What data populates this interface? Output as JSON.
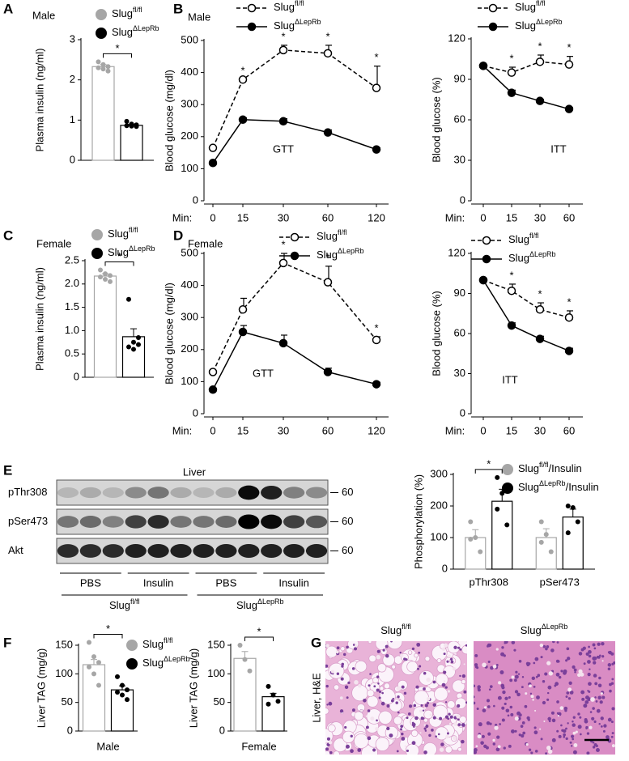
{
  "panel_labels": [
    "A",
    "B",
    "C",
    "D",
    "E",
    "F",
    "G"
  ],
  "chart_data": [
    {
      "type": "bar",
      "title": "Male",
      "ylabel": "Plasma insulin (ng/ml)",
      "ylim": [
        0,
        3
      ],
      "yticks": [
        0,
        1,
        2,
        3
      ],
      "legend": true,
      "significance": [
        "*"
      ],
      "series": [
        {
          "name": "Slug",
          "sup": "fl/fl",
          "color": "#a6a6a6",
          "values": [
            2.33
          ],
          "errors": [
            0.05
          ],
          "points": [
            [
              2.45,
              2.38,
              2.33,
              2.3,
              2.27,
              2.22
            ]
          ]
        },
        {
          "name": "Slug",
          "sup": "ΔLepRb",
          "color": "#000000",
          "values": [
            0.87
          ],
          "errors": [
            0.03
          ],
          "points": [
            [
              0.97,
              0.9,
              0.88,
              0.86,
              0.85,
              0.84
            ]
          ]
        }
      ]
    },
    {
      "type": "line",
      "title": "Male",
      "ylabel": "Blood glucose (mg/dl)",
      "xlabel": "Min:",
      "annotation": "GTT",
      "categories": [
        "0",
        "15",
        "30",
        "60",
        "120"
      ],
      "ylim": [
        0,
        500
      ],
      "yticks": [
        0,
        100,
        200,
        300,
        400,
        500
      ],
      "stars": [
        null,
        "*",
        "*",
        "*",
        "*"
      ],
      "legend": true,
      "series": [
        {
          "name": "Slug",
          "sup": "fl/fl",
          "color": "#000000",
          "dash": true,
          "marker": "open",
          "values": [
            165,
            378,
            470,
            460,
            352
          ],
          "errors": [
            null,
            null,
            15,
            25,
            68
          ]
        },
        {
          "name": "Slug",
          "sup": "ΔLepRb",
          "color": "#000000",
          "dash": false,
          "marker": "filled",
          "values": [
            118,
            253,
            248,
            213,
            160
          ],
          "errors": [
            null,
            6,
            8,
            8,
            5
          ]
        }
      ]
    },
    {
      "type": "line",
      "ylabel": "Blood glucose (%)",
      "xlabel": "Min:",
      "annotation": "ITT",
      "categories": [
        "0",
        "15",
        "30",
        "60"
      ],
      "ylim": [
        0,
        120
      ],
      "yticks": [
        0,
        30,
        60,
        90,
        120
      ],
      "stars": [
        null,
        "*",
        "*",
        "*"
      ],
      "legend": true,
      "series": [
        {
          "name": "Slug",
          "sup": "fl/fl",
          "color": "#000000",
          "dash": true,
          "marker": "open",
          "values": [
            100,
            95,
            103,
            101
          ],
          "errors": [
            null,
            4,
            5,
            6
          ]
        },
        {
          "name": "Slug",
          "sup": "ΔLepRb",
          "color": "#000000",
          "dash": false,
          "marker": "filled",
          "values": [
            100,
            80,
            74,
            68
          ],
          "errors": [
            null,
            2,
            1,
            1
          ]
        }
      ]
    },
    {
      "type": "bar",
      "title": "Female",
      "ylabel": "Plasma insulin (ng/ml)",
      "ylim": [
        0,
        2.5
      ],
      "yticks": [
        0,
        0.5,
        {
          "value": 1,
          "label": "1.0"
        },
        1.5,
        {
          "value": 2,
          "label": "2.0"
        },
        2.5
      ],
      "legend": true,
      "significance": [
        "*"
      ],
      "series": [
        {
          "name": "Slug",
          "sup": "fl/fl",
          "color": "#a6a6a6",
          "values": [
            2.17
          ],
          "errors": [
            0.05
          ],
          "points": [
            [
              2.3,
              2.22,
              2.18,
              2.15,
              2.1,
              2.05
            ]
          ]
        },
        {
          "name": "Slug",
          "sup": "ΔLepRb",
          "color": "#000000",
          "values": [
            0.87
          ],
          "errors": [
            0.17
          ],
          "points": [
            [
              1.67,
              0.75,
              0.7,
              0.65,
              0.6,
              0.85
            ]
          ]
        }
      ]
    },
    {
      "type": "line",
      "title": "Female",
      "ylabel": "Blood glucose (mg/dl)",
      "xlabel": "Min:",
      "annotation": "GTT",
      "categories": [
        "0",
        "15",
        "30",
        "60",
        "120"
      ],
      "ylim": [
        0,
        500
      ],
      "yticks": [
        0,
        100,
        200,
        300,
        400,
        500
      ],
      "stars": [
        null,
        null,
        "*",
        "*",
        "*"
      ],
      "legend": true,
      "series": [
        {
          "name": "Slug",
          "sup": "fl/fl",
          "color": "#000000",
          "dash": true,
          "marker": "open",
          "values": [
            130,
            325,
            470,
            410,
            230
          ],
          "errors": [
            null,
            35,
            30,
            50,
            10
          ]
        },
        {
          "name": "Slug",
          "sup": "ΔLepRb",
          "color": "#000000",
          "dash": false,
          "marker": "filled",
          "values": [
            75,
            255,
            220,
            130,
            92
          ],
          "errors": [
            null,
            20,
            25,
            12,
            6
          ]
        }
      ]
    },
    {
      "type": "line",
      "ylabel": "Blood glucose (%)",
      "xlabel": "Min:",
      "annotation": "ITT",
      "categories": [
        "0",
        "15",
        "30",
        "60"
      ],
      "ylim": [
        0,
        120
      ],
      "yticks": [
        0,
        30,
        60,
        90,
        120
      ],
      "stars": [
        null,
        "*",
        "*",
        "*"
      ],
      "legend": true,
      "series": [
        {
          "name": "Slug",
          "sup": "fl/fl",
          "color": "#000000",
          "dash": true,
          "marker": "open",
          "values": [
            100,
            92,
            78,
            72
          ],
          "errors": [
            null,
            5,
            5,
            5
          ]
        },
        {
          "name": "Slug",
          "sup": "ΔLepRb",
          "color": "#000000",
          "dash": false,
          "marker": "filled",
          "values": [
            100,
            66,
            56,
            47
          ],
          "errors": [
            null,
            2,
            2,
            2
          ]
        }
      ]
    },
    {
      "type": "bar",
      "ylabel": "Phosphorylation (%)",
      "categories": [
        "pThr308",
        "pSer473"
      ],
      "ylim": [
        0,
        300
      ],
      "yticks": [
        0,
        100,
        200,
        300
      ],
      "legend": true,
      "significance": [
        "*",
        null
      ],
      "series": [
        {
          "name": "Slug",
          "sup": "fl/fl",
          "suffix": "/Insulin",
          "color": "#a6a6a6",
          "values": [
            100,
            100
          ],
          "errors": [
            25,
            28
          ],
          "points": [
            [
              150,
              100,
              55,
              95
            ],
            [
              150,
              110,
              55,
              85
            ]
          ]
        },
        {
          "name": "Slug",
          "sup": "ΔLepRb",
          "suffix": "/Insulin",
          "color": "#000000",
          "values": [
            215,
            165
          ],
          "errors": [
            38,
            25
          ],
          "points": [
            [
              290,
              240,
              140,
              190
            ],
            [
              200,
              195,
              150,
              115
            ]
          ]
        }
      ]
    },
    {
      "type": "bar",
      "xlabel": "Male",
      "ylabel": "Liver TAG (mg/g)",
      "ylim": [
        0,
        150
      ],
      "yticks": [
        0,
        50,
        100,
        150
      ],
      "legend": true,
      "significance": [
        "*"
      ],
      "series": [
        {
          "name": "Slug",
          "sup": "fl/fl",
          "color": "#a6a6a6",
          "values": [
            116
          ],
          "errors": [
            9
          ],
          "points": [
            [
              155,
              130,
              120,
              112,
              100,
              80
            ]
          ]
        },
        {
          "name": "Slug",
          "sup": "ΔLepRb",
          "color": "#000000",
          "values": [
            72
          ],
          "errors": [
            7
          ],
          "points": [
            [
              95,
              80,
              72,
              68,
              63,
              55
            ]
          ]
        }
      ]
    },
    {
      "type": "bar",
      "xlabel": "Female",
      "ylabel": "Liver TAG (mg/g)",
      "ylim": [
        0,
        150
      ],
      "yticks": [
        0,
        50,
        100,
        150
      ],
      "significance": [
        "*"
      ],
      "series": [
        {
          "color": "#a6a6a6",
          "values": [
            127
          ],
          "errors": [
            12
          ],
          "points": [
            [
              150,
              125,
              105
            ]
          ]
        },
        {
          "color": "#000000",
          "values": [
            60
          ],
          "errors": [
            6
          ],
          "points": [
            [
              78,
              63,
              52,
              47
            ]
          ]
        }
      ]
    }
  ],
  "blot": {
    "title": "Liver",
    "rows": [
      {
        "label": "pThr308",
        "marker": 60
      },
      {
        "label": "pSer473",
        "marker": 60
      },
      {
        "label": "Akt",
        "marker": 60
      }
    ],
    "groups": [
      "PBS",
      "Insulin",
      "PBS",
      "Insulin"
    ],
    "genotypes": [
      {
        "name": "Slug",
        "sup": "fl/fl"
      },
      {
        "name": "Slug",
        "sup": "ΔLepRb"
      }
    ]
  },
  "histology": {
    "side_label": "Liver, H&E",
    "panels": [
      {
        "name": "Slug",
        "sup": "fl/fl"
      },
      {
        "name": "Slug",
        "sup": "ΔLepRb"
      }
    ]
  }
}
